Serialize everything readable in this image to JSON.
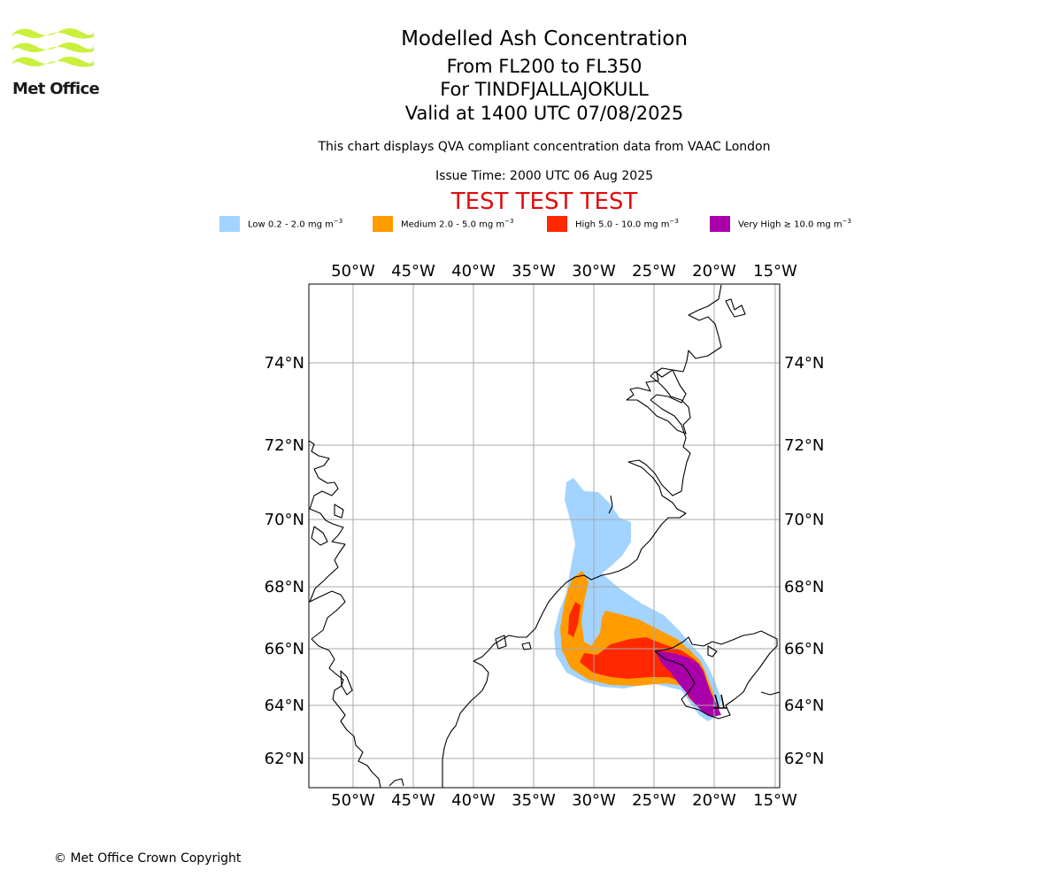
{
  "branding": {
    "logo_text": "Met Office",
    "logo_color": "#c8f03c"
  },
  "header": {
    "title": "Modelled Ash Concentration",
    "levels": "From FL200 to FL350",
    "volcano": "For TINDFJALLAJOKULL",
    "valid": "Valid at 1400 UTC 07/08/2025",
    "description": "This chart displays QVA compliant concentration data from VAAC London",
    "issue_time": "Issue Time: 2000 UTC 06 Aug 2025",
    "test_banner": "TEST TEST TEST",
    "test_banner_color": "#e30b0b"
  },
  "legend": [
    {
      "label": "Low 0.2 - 2.0 mg m",
      "sup": "−3",
      "color": "#a3d3ff"
    },
    {
      "label": "Medium 2.0 - 5.0 mg m",
      "sup": "−3",
      "color": "#ff9c00"
    },
    {
      "label": "High 5.0 - 10.0 mg m",
      "sup": "−3",
      "color": "#ff2800"
    },
    {
      "label": "Very High  ≥  10.0 mg m",
      "sup": "−3",
      "color": "#aa00aa"
    }
  ],
  "map": {
    "lon_labels": [
      "50°W",
      "45°W",
      "40°W",
      "35°W",
      "30°W",
      "25°W",
      "20°W",
      "15°W"
    ],
    "lat_labels": [
      "74°N",
      "72°N",
      "70°N",
      "68°N",
      "66°N",
      "64°N",
      "62°N"
    ],
    "gridline_color": "#aaaaaa",
    "coastline_color": "#000000"
  },
  "footer": {
    "copyright": "© Met Office Crown Copyright"
  }
}
